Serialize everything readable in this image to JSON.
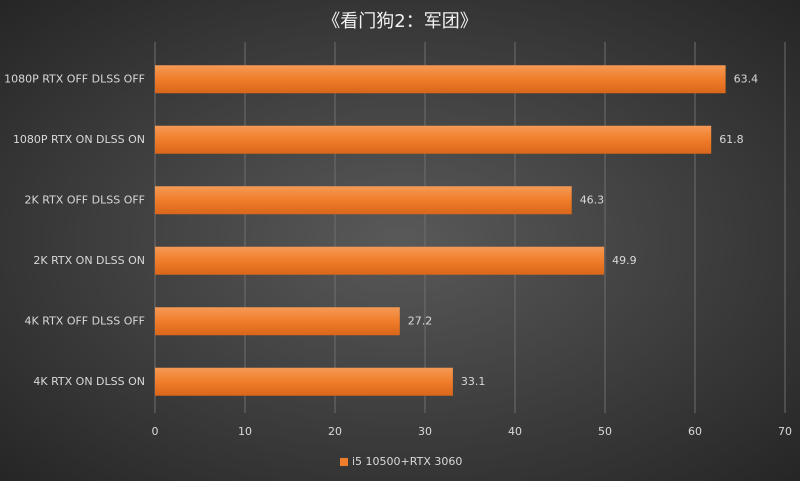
{
  "chart_data": {
    "type": "bar",
    "orientation": "horizontal",
    "title": "《看门狗2：军团》",
    "categories": [
      "1080P RTX OFF DLSS OFF",
      "1080P RTX ON DLSS ON",
      "2K RTX OFF DLSS OFF",
      "2K RTX ON DLSS ON",
      "4K RTX OFF DLSS OFF",
      "4K RTX ON DLSS ON"
    ],
    "series": [
      {
        "name": "i5 10500+RTX 3060",
        "color": "#f07d2a",
        "values": [
          63.4,
          61.8,
          46.3,
          49.9,
          27.2,
          33.1
        ]
      }
    ],
    "xlim": [
      0,
      70
    ],
    "xticks": [
      0,
      10,
      20,
      30,
      40,
      50,
      60,
      70
    ],
    "grid": true,
    "legend": "bottom"
  }
}
